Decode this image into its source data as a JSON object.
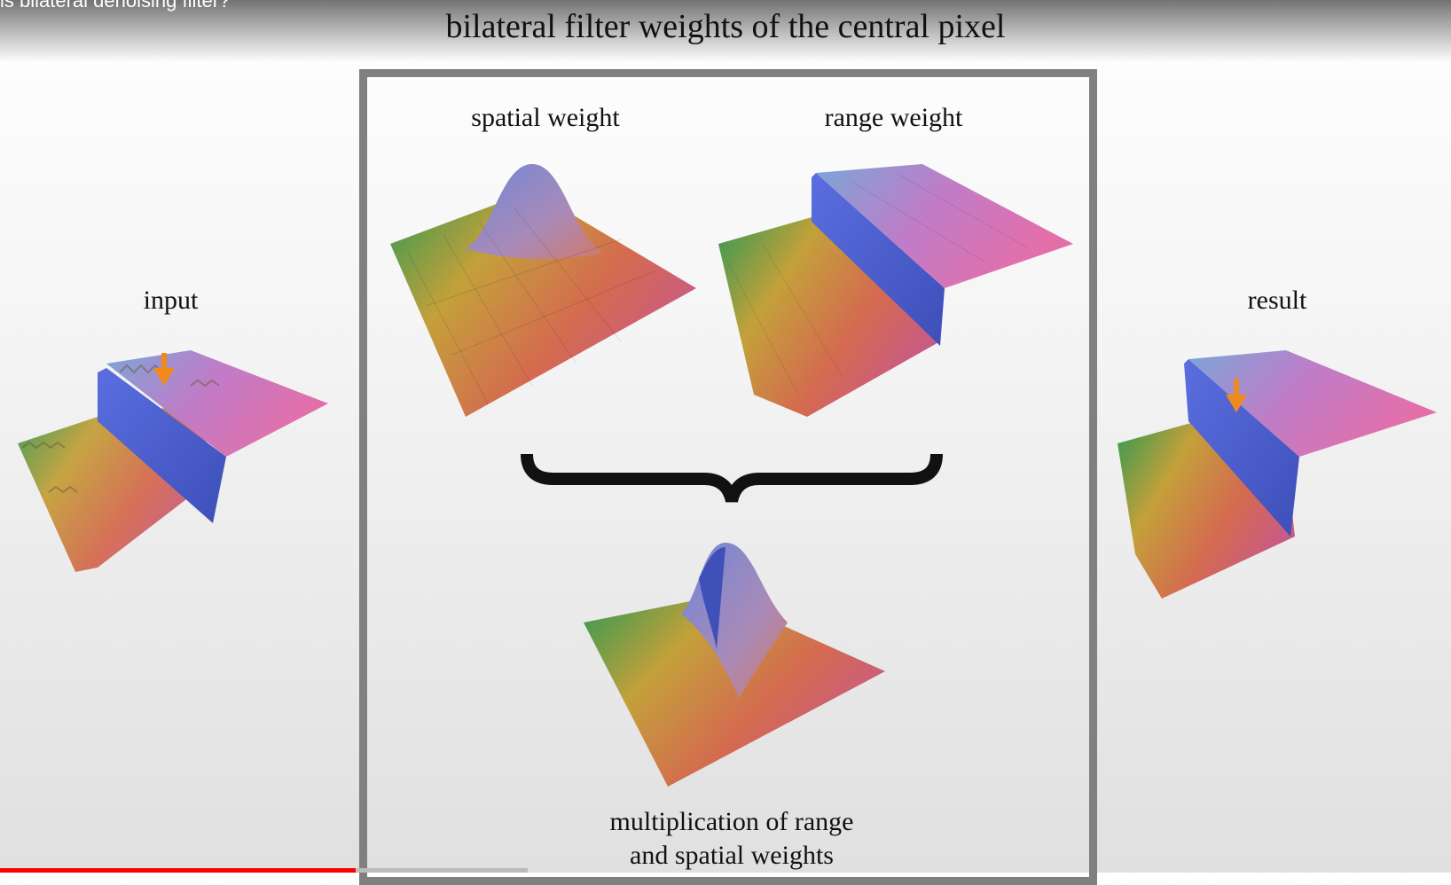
{
  "video": {
    "title": "is bilateral denoising filter?",
    "progress_percent": 24.5
  },
  "slide": {
    "title": "bilateral filter weights of the central pixel",
    "labels": {
      "input": "input",
      "spatial": "spatial weight",
      "range": "range weight",
      "result": "result",
      "mult_line1": "multiplication of range",
      "mult_line2": "and spatial weights"
    }
  },
  "colors": {
    "accent_arrow": "#f08a1c",
    "frame": "#808080",
    "progress": "#ff0000"
  }
}
